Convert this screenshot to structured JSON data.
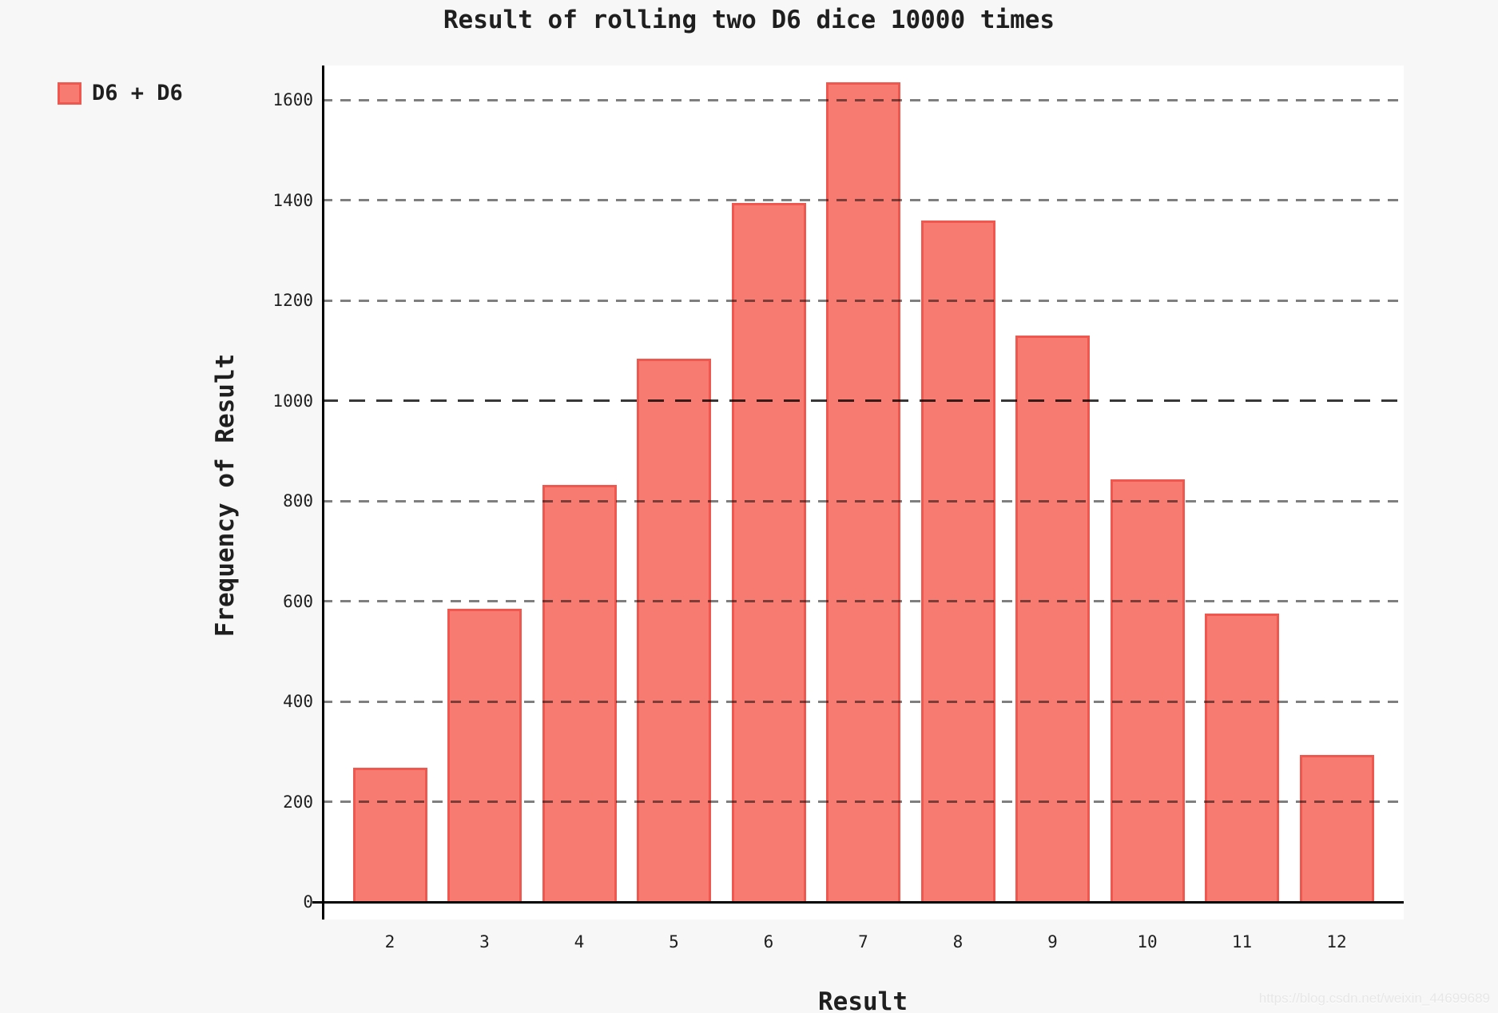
{
  "title": "Result of rolling two D6 dice 10000 times",
  "legend": {
    "label": "D6 + D6"
  },
  "watermark": "https://blog.csdn.net/weixin_44699689",
  "colors": {
    "background": "#f7f7f7",
    "plot_background": "#ffffff",
    "bar_fill": "#f87b71",
    "bar_edge": "#ef584e",
    "grid": "rgba(0,0,0,0.50)",
    "grid_emphasis": "rgba(0,0,0,0.78)",
    "axis": "#000000",
    "text": "#1f1f1f",
    "watermark": "#e7e7e7"
  },
  "chart_data": {
    "type": "bar",
    "title": "Result of rolling two D6 dice 10000 times",
    "xlabel": "Result",
    "ylabel": "Frequency of Result",
    "categories": [
      "2",
      "3",
      "4",
      "5",
      "6",
      "7",
      "8",
      "9",
      "10",
      "11",
      "12"
    ],
    "series": [
      {
        "name": "D6 + D6",
        "values": [
          268,
          585,
          832,
          1084,
          1395,
          1635,
          1360,
          1130,
          843,
          575,
          293
        ]
      }
    ],
    "total_rolls": 10000,
    "yticks": [
      0,
      200,
      400,
      600,
      800,
      1000,
      1200,
      1400,
      1600
    ],
    "ylim": [
      0,
      1670
    ],
    "emphasized_gridline": 1000,
    "grid": true,
    "grid_style": "dashed",
    "legend_position": "upper-left-outside"
  }
}
